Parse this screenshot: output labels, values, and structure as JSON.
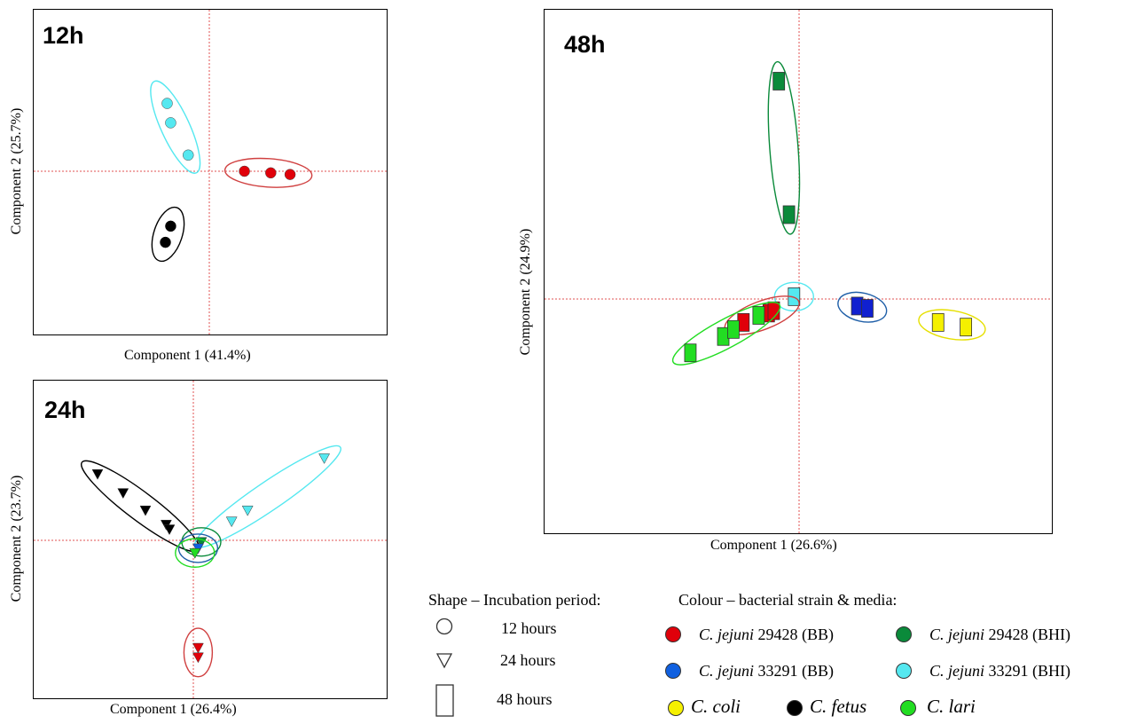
{
  "chart_data": [
    {
      "type": "scatter",
      "title": "12h",
      "xlabel": "Component 1 (41.4%)",
      "ylabel": "Component 2 (25.7%)",
      "xlim": [
        -5,
        5
      ],
      "ylim": [
        -5,
        5
      ],
      "marker": "circle",
      "series": [
        {
          "name": "C. jejuni 33291 (BHI)",
          "color": "#55e8f0",
          "ring": "#55e8f0",
          "points": [
            [
              -1.2,
              2.1
            ],
            [
              -1.1,
              1.5
            ],
            [
              -0.6,
              0.5
            ]
          ]
        },
        {
          "name": "C. jejuni 29428 (BB)",
          "color": "#e0000a",
          "ring": "#d04040",
          "points": [
            [
              1.0,
              0
            ],
            [
              1.75,
              -0.05
            ],
            [
              2.3,
              -0.1
            ]
          ]
        },
        {
          "name": "C. fetus",
          "color": "#000000",
          "ring": "#000000",
          "points": [
            [
              -1.1,
              -1.7
            ],
            [
              -1.25,
              -2.2
            ]
          ]
        }
      ]
    },
    {
      "type": "scatter",
      "title": "24h",
      "xlabel": "Component 1 (26.4%)",
      "ylabel": "Component 2 (23.7%)",
      "xlim": [
        -5,
        5
      ],
      "ylim": [
        -5,
        5
      ],
      "marker": "triangle",
      "series": [
        {
          "name": "C. fetus",
          "color": "#000000",
          "ring": "#000000",
          "points": [
            [
              -3.0,
              2.1
            ],
            [
              -2.2,
              1.5
            ],
            [
              -1.5,
              0.95
            ],
            [
              -0.85,
              0.5
            ],
            [
              -0.75,
              0.35
            ]
          ]
        },
        {
          "name": "C. jejuni 33291 (BHI)",
          "color": "#55e8f0",
          "ring": "#55e8f0",
          "points": [
            [
              4.1,
              2.6
            ],
            [
              1.7,
              0.95
            ],
            [
              1.2,
              0.6
            ]
          ]
        },
        {
          "name": "C. jejuni 29428 (BHI)",
          "color": "#0a8a3a",
          "ring": "#0a8a3a",
          "points": [
            [
              0.25,
              -0.05
            ]
          ]
        },
        {
          "name": "C. jejuni 33291 (BB)",
          "color": "#1060e0",
          "ring": "#1f5fa8",
          "points": [
            [
              0.15,
              -0.25
            ]
          ]
        },
        {
          "name": "C. lari",
          "color": "#22dd22",
          "ring": "#22dd22",
          "points": [
            [
              0.05,
              -0.4
            ]
          ]
        },
        {
          "name": "C. jejuni 29428 (BB)",
          "color": "#e0000a",
          "ring": "#d04040",
          "points": [
            [
              0.15,
              -3.4
            ],
            [
              0.15,
              -3.7
            ]
          ]
        }
      ]
    },
    {
      "type": "scatter",
      "title": "48h",
      "xlabel": "Component 1 (26.6%)",
      "ylabel": "Component 2 (24.9%)",
      "xlim": [
        -5,
        5
      ],
      "ylim": [
        -5,
        5
      ],
      "marker": "rectangle",
      "series": [
        {
          "name": "C. jejuni 29428 (BHI)",
          "color": "#0a8a3a",
          "ring": "#0a8a3a",
          "points": [
            [
              -0.4,
              4.65
            ],
            [
              -0.2,
              1.8
            ]
          ]
        },
        {
          "name": "C. jejuni 33291 (BHI)",
          "color": "#55e8f0",
          "ring": "#55e8f0",
          "points": [
            [
              -0.1,
              0.05
            ]
          ]
        },
        {
          "name": "C. jejuni 33291 (BB)",
          "color": "#1020d0",
          "ring": "#1f5fa8",
          "points": [
            [
              1.15,
              -0.15
            ],
            [
              1.35,
              -0.2
            ]
          ]
        },
        {
          "name": "C. coli",
          "color": "#f5f000",
          "ring": "#e6e000",
          "points": [
            [
              2.75,
              -0.5
            ],
            [
              3.3,
              -0.6
            ]
          ]
        },
        {
          "name": "C. jejuni 29428 (BB)",
          "color": "#e0000a",
          "ring": "#d04040",
          "points": [
            [
              -1.1,
              -0.5
            ],
            [
              -0.6,
              -0.3
            ],
            [
              -0.5,
              -0.25
            ]
          ]
        },
        {
          "name": "C. lari",
          "color": "#22dd22",
          "ring": "#22dd22",
          "points": [
            [
              -2.15,
              -1.15
            ],
            [
              -1.5,
              -0.8
            ],
            [
              -1.3,
              -0.65
            ],
            [
              -0.8,
              -0.35
            ]
          ]
        }
      ]
    }
  ],
  "legend": {
    "shape_header": "Shape – Incubation period:",
    "colour_header": "Colour – bacterial strain & media:",
    "shapes": [
      {
        "label": "12 hours"
      },
      {
        "label": "24 hours"
      },
      {
        "label": "48 hours"
      }
    ],
    "colours": [
      {
        "species": "C. jejuni",
        "rest": " 29428 (BB)",
        "color": "#e0000a"
      },
      {
        "species": "C. jejuni",
        "rest": " 29428 (BHI)",
        "color": "#0a8a3a"
      },
      {
        "species": "C. jejuni",
        "rest": " 33291 (BB)",
        "color": "#1060e0"
      },
      {
        "species": "C. jejuni",
        "rest": " 33291 (BHI)",
        "color": "#55e8f0"
      },
      {
        "species": "C. coli",
        "rest": "",
        "color": "#f5f000"
      },
      {
        "species": "C. fetus",
        "rest": "",
        "color": "#000000"
      },
      {
        "species": "C. lari",
        "rest": "",
        "color": "#22dd22"
      }
    ]
  }
}
